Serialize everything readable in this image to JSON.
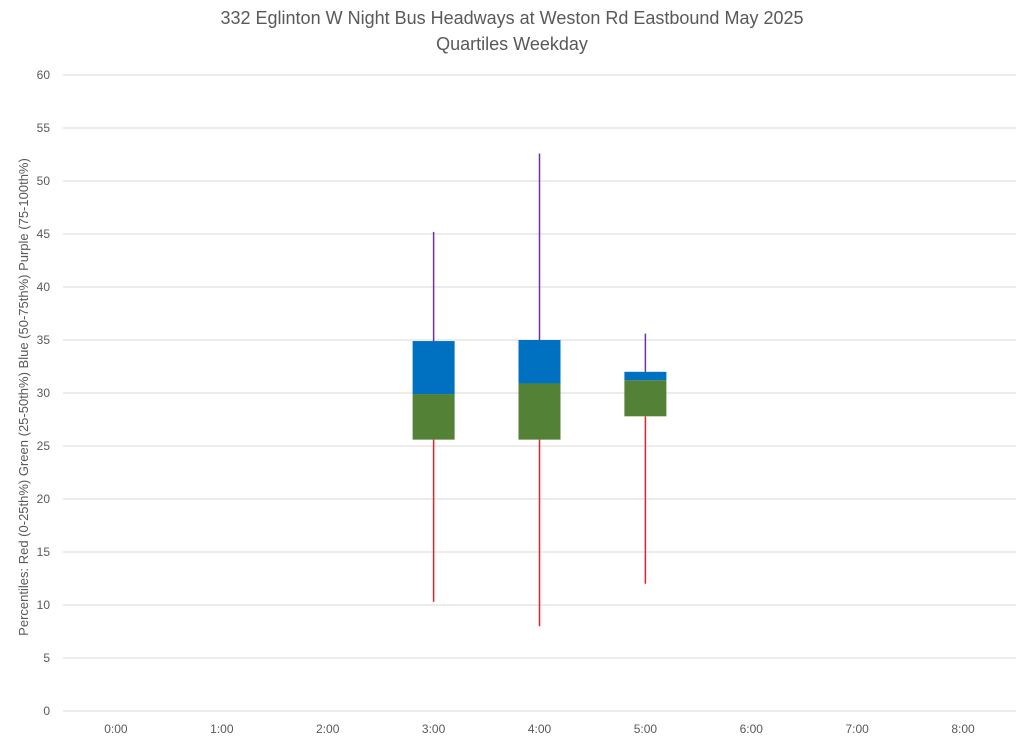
{
  "chart_data": {
    "type": "box",
    "title": "332 Eglinton W Night Bus Headways at Weston Rd Eastbound May 2025",
    "subtitle": "Quartiles Weekday",
    "ylabel": "Percentiles:  Red (0-25th%)  Green (25-50th%)  Blue (50-75th%)  Purple (75-100th%)",
    "xlabel": "",
    "categories": [
      "0:00",
      "1:00",
      "2:00",
      "3:00",
      "4:00",
      "5:00",
      "6:00",
      "7:00",
      "8:00"
    ],
    "ylim": [
      0,
      60
    ],
    "yticks": [
      0,
      5,
      10,
      15,
      20,
      25,
      30,
      35,
      40,
      45,
      50,
      55,
      60
    ],
    "grid": true,
    "series": [
      {
        "category": "3:00",
        "min": 10.3,
        "q1": 25.6,
        "median": 29.9,
        "q3": 34.9,
        "max": 45.2
      },
      {
        "category": "4:00",
        "min": 8.0,
        "q1": 25.6,
        "median": 30.9,
        "q3": 35.0,
        "max": 52.6
      },
      {
        "category": "5:00",
        "min": 12.0,
        "q1": 27.8,
        "median": 31.2,
        "q3": 32.0,
        "max": 35.6
      }
    ],
    "colors": {
      "lower_whisker": "#e3212a",
      "lower_box": "#538135",
      "upper_box": "#0070c0",
      "upper_whisker": "#7030a0",
      "grid": "#d9d9d9",
      "text": "#595959"
    }
  }
}
